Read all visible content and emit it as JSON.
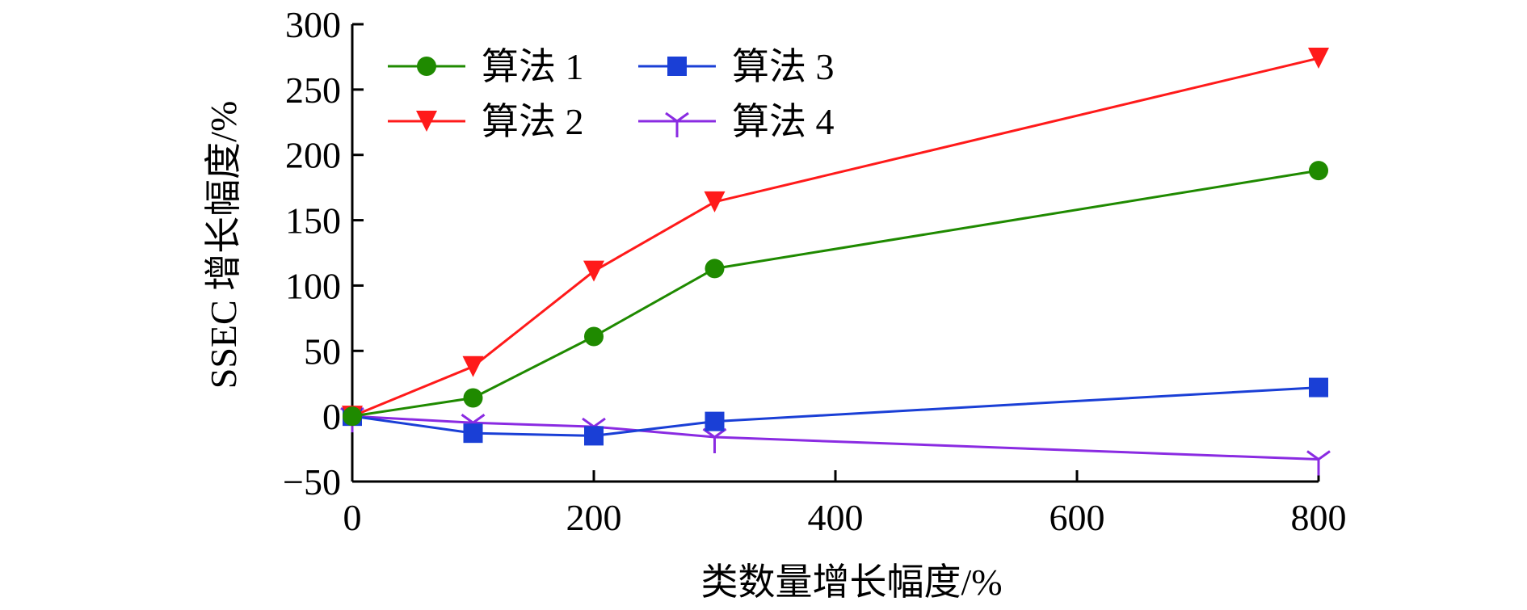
{
  "chart_data": {
    "type": "line",
    "title": "",
    "xlabel": "类数量增长幅度/%",
    "ylabel": "SSEC 增长幅度/%",
    "x": [
      0,
      100,
      200,
      300,
      800
    ],
    "xticks": [
      0,
      200,
      400,
      600,
      800
    ],
    "yticks": [
      -50,
      0,
      50,
      100,
      150,
      200,
      250,
      300
    ],
    "xtick_labels": [
      "0",
      "200",
      "400",
      "600",
      "800"
    ],
    "ytick_labels": [
      "−50",
      "0",
      "50",
      "100",
      "150",
      "200",
      "250",
      "300"
    ],
    "xlim": [
      0,
      800
    ],
    "ylim": [
      -50,
      300
    ],
    "grid": false,
    "legend_position": "top-left",
    "series": [
      {
        "name": "算法 1",
        "color": "#1f8a00",
        "marker": "circle",
        "values": [
          0,
          14,
          61,
          113,
          188
        ]
      },
      {
        "name": "算法 2",
        "color": "#ff1a1a",
        "marker": "triangle-down",
        "values": [
          0,
          38,
          111,
          164,
          274
        ]
      },
      {
        "name": "算法 3",
        "color": "#1a3fd6",
        "marker": "square",
        "values": [
          0,
          -13,
          -15,
          -4,
          22
        ]
      },
      {
        "name": "算法 4",
        "color": "#8a2be2",
        "marker": "tri-up",
        "values": [
          0,
          -5,
          -8,
          -16,
          -33
        ]
      }
    ]
  }
}
